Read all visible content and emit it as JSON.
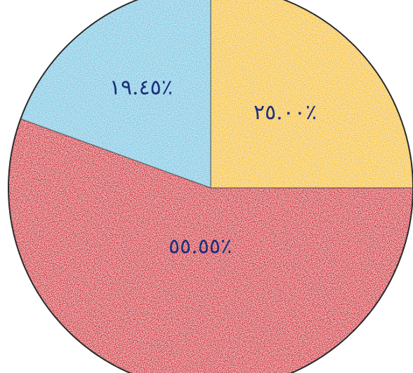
{
  "chart_data": {
    "type": "pie",
    "title": "",
    "slices": [
      {
        "label": "٢٥.٠٠٪",
        "value": 25.0,
        "color": "#f6c414"
      },
      {
        "label": "٥٥.٥٥٪",
        "value": 55.55,
        "color": "#d41b2e"
      },
      {
        "label": "١٩.٤٥٪",
        "value": 19.45,
        "color": "#79c9e4"
      }
    ],
    "start_angle_deg": 0,
    "direction": "clockwise",
    "outline_color": "#2b2b2b"
  }
}
